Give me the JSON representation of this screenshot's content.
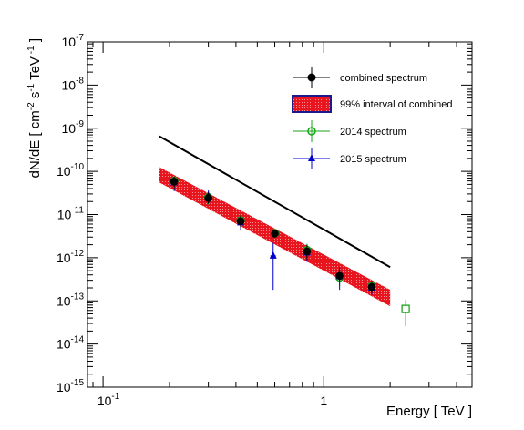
{
  "chart_data": {
    "type": "scatter",
    "title": "",
    "xlabel": "Energy [ TeV ]",
    "ylabel": "dN/dE [ cm^-2 s^-1 TeV^-1 ]",
    "x_scale": "log",
    "y_scale": "log",
    "xlim": [
      0.085,
      4.7
    ],
    "ylim": [
      1e-15,
      1e-07
    ],
    "grid": false,
    "legend_position": "top-right",
    "x_tick_labels": [
      {
        "value": 0.1,
        "base": "10",
        "exp": "-1"
      },
      {
        "value": 1,
        "base": "1",
        "exp": ""
      }
    ],
    "y_tick_labels": [
      {
        "value": 1e-07,
        "base": "10",
        "exp": "-7"
      },
      {
        "value": 1e-08,
        "base": "10",
        "exp": "-8"
      },
      {
        "value": 1e-09,
        "base": "10",
        "exp": "-9"
      },
      {
        "value": 1e-10,
        "base": "10",
        "exp": "-10"
      },
      {
        "value": 1e-11,
        "base": "10",
        "exp": "-11"
      },
      {
        "value": 1e-12,
        "base": "10",
        "exp": "-12"
      },
      {
        "value": 1e-13,
        "base": "10",
        "exp": "-13"
      },
      {
        "value": 1e-14,
        "base": "10",
        "exp": "-14"
      },
      {
        "value": 1e-15,
        "base": "10",
        "exp": "-15"
      }
    ],
    "fit": {
      "x_range": [
        0.18,
        2.0
      ],
      "y_at_x1": 4.5e-12,
      "index": 2.9,
      "band_y_low": [
        5.5e-11,
        7.5e-14
      ],
      "band_y_high": [
        1.25e-10,
        1.8e-13
      ]
    },
    "series": [
      {
        "name": "combined spectrum",
        "color": "#000000",
        "marker": "circle",
        "points": [
          {
            "x": 0.21,
            "y": 5.8e-11,
            "ylo": 3.8e-11,
            "yhi": 7.5e-11
          },
          {
            "x": 0.3,
            "y": 2.4e-11,
            "ylo": 1.8e-11,
            "yhi": 3.2e-11
          },
          {
            "x": 0.42,
            "y": 7e-12,
            "ylo": 5e-12,
            "yhi": 9.5e-12
          },
          {
            "x": 0.6,
            "y": 3.6e-12,
            "ylo": 3e-12,
            "yhi": 4.3e-12
          },
          {
            "x": 0.84,
            "y": 1.4e-12,
            "ylo": 9e-13,
            "yhi": 2e-12
          },
          {
            "x": 1.18,
            "y": 3.8e-13,
            "ylo": 2.8e-13,
            "yhi": 4.8e-13
          },
          {
            "x": 1.65,
            "y": 2.1e-13,
            "ylo": 1.6e-13,
            "yhi": 2.9e-13
          }
        ]
      },
      {
        "name": "2014 spectrum",
        "color": "#1aa51a",
        "marker": "open-circle",
        "points": [
          {
            "x": 0.21,
            "y": 6e-11,
            "ylo": 4e-11,
            "yhi": 7.8e-11
          },
          {
            "x": 0.3,
            "y": 2.5e-11,
            "ylo": 1.7e-11,
            "yhi": 3.4e-11
          },
          {
            "x": 0.42,
            "y": 7.3e-12,
            "ylo": 5e-12,
            "yhi": 1e-11
          },
          {
            "x": 0.6,
            "y": 3.7e-12,
            "ylo": 3e-12,
            "yhi": 4.5e-12
          },
          {
            "x": 0.84,
            "y": 1.5e-12,
            "ylo": 1e-12,
            "yhi": 2.1e-12
          },
          {
            "x": 1.18,
            "y": 3.5e-13,
            "ylo": 2.2e-13,
            "yhi": 4.5e-13
          },
          {
            "x": 1.65,
            "y": 2.2e-13,
            "ylo": 1.6e-13,
            "yhi": 2.9e-13
          }
        ]
      },
      {
        "name": "2015 spectrum",
        "color": "#0000cc",
        "marker": "triangle",
        "points": [
          {
            "x": 0.21,
            "y": 5.5e-11,
            "ylo": 3.5e-11,
            "yhi": 7.5e-11
          },
          {
            "x": 0.3,
            "y": 2.7e-11,
            "ylo": 1.8e-11,
            "yhi": 3.6e-11
          },
          {
            "x": 0.42,
            "y": 6.5e-12,
            "ylo": 4.5e-12,
            "yhi": 9e-12
          },
          {
            "x": 0.59,
            "y": 1.1e-12,
            "ylo": 1.8e-13,
            "yhi": 2.2e-12
          },
          {
            "x": 0.84,
            "y": 1.3e-12,
            "ylo": 8e-13,
            "yhi": 1.9e-12
          },
          {
            "x": 1.18,
            "y": 3.7e-13,
            "ylo": 1.8e-13,
            "yhi": 6e-13
          },
          {
            "x": 1.65,
            "y": 2e-13,
            "ylo": 1.4e-13,
            "yhi": 2.6e-13
          }
        ]
      },
      {
        "name": "",
        "color": "#1aa51a",
        "marker": "open-square",
        "points": [
          {
            "x": 2.35,
            "y": 6.5e-14,
            "ylo": 2.6e-14,
            "yhi": 1.05e-13
          }
        ]
      }
    ],
    "legend": [
      {
        "label": "combined spectrum",
        "marker": "circle",
        "color": "#000000"
      },
      {
        "label": "99% interval of combined",
        "marker": "band",
        "color": "#e8141e"
      },
      {
        "label": "2014 spectrum",
        "marker": "open-circle",
        "color": "#1aa51a"
      },
      {
        "label": "2015 spectrum",
        "marker": "triangle",
        "color": "#0000cc"
      }
    ]
  }
}
